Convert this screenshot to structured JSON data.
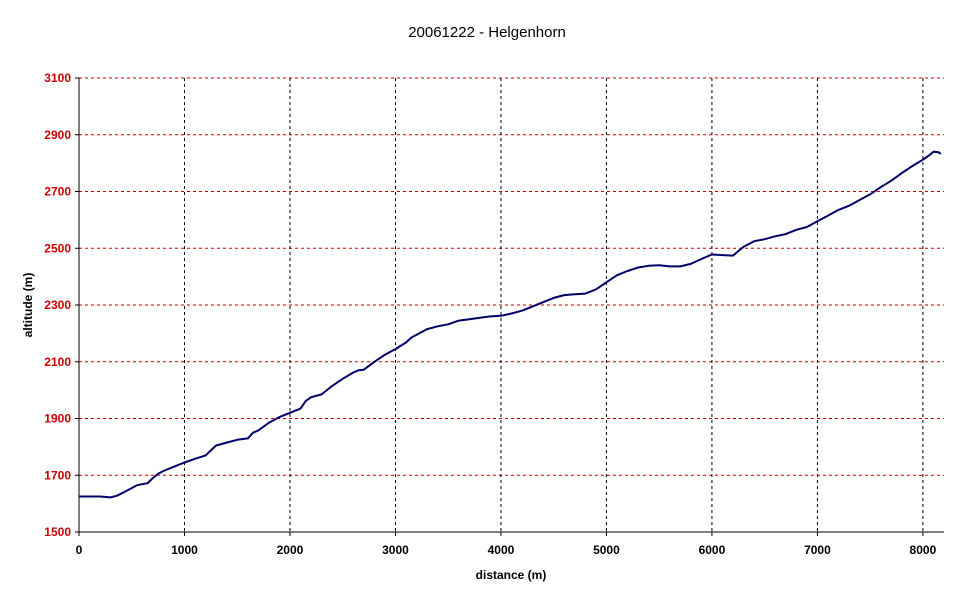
{
  "colors": {
    "line": "#000066",
    "hgrid": "#cc0000",
    "vgrid": "#000000",
    "ytick": "#cc0000",
    "background": "#ffffff"
  },
  "chart_data": {
    "type": "line",
    "title": "20061222 - Helgenhorn",
    "xlabel": "distance (m)",
    "ylabel": "altitude (m)",
    "xlim": [
      0,
      8200
    ],
    "ylim": [
      1500,
      3100
    ],
    "xticks": [
      "0",
      "1000",
      "2000",
      "3000",
      "4000",
      "5000",
      "6000",
      "7000",
      "8000"
    ],
    "yticks": [
      "1500",
      "1700",
      "1900",
      "2100",
      "2300",
      "2500",
      "2700",
      "2900",
      "3100"
    ],
    "grid": true,
    "legend": "none",
    "series": [
      {
        "x": [
          0,
          100,
          200,
          300,
          360,
          450,
          550,
          650,
          700,
          750,
          800,
          900,
          1000,
          1100,
          1200,
          1300,
          1400,
          1500,
          1600,
          1650,
          1700,
          1800,
          1900,
          2000,
          2100,
          2150,
          2200,
          2300,
          2400,
          2500,
          2600,
          2650,
          2700,
          2800,
          2900,
          3000,
          3100,
          3150,
          3200,
          3300,
          3400,
          3500,
          3600,
          3700,
          3800,
          3900,
          4000,
          4100,
          4200,
          4300,
          4400,
          4500,
          4600,
          4700,
          4800,
          4900,
          5000,
          5100,
          5200,
          5300,
          5400,
          5500,
          5600,
          5700,
          5800,
          5900,
          6000,
          6100,
          6200,
          6250,
          6300,
          6400,
          6500,
          6600,
          6700,
          6800,
          6900,
          7000,
          7100,
          7200,
          7300,
          7400,
          7500,
          7600,
          7700,
          7800,
          7900,
          8000,
          8050,
          8100,
          8150,
          8170
        ],
        "y": [
          1625,
          1625,
          1625,
          1622,
          1628,
          1645,
          1665,
          1672,
          1690,
          1705,
          1715,
          1730,
          1745,
          1758,
          1770,
          1805,
          1815,
          1825,
          1830,
          1850,
          1858,
          1885,
          1905,
          1920,
          1935,
          1962,
          1975,
          1985,
          2015,
          2040,
          2062,
          2070,
          2072,
          2100,
          2125,
          2145,
          2168,
          2185,
          2195,
          2215,
          2225,
          2232,
          2245,
          2250,
          2255,
          2260,
          2262,
          2270,
          2280,
          2295,
          2310,
          2325,
          2335,
          2338,
          2340,
          2355,
          2380,
          2405,
          2420,
          2432,
          2438,
          2440,
          2436,
          2436,
          2445,
          2462,
          2478,
          2476,
          2474,
          2490,
          2505,
          2525,
          2532,
          2542,
          2550,
          2565,
          2575,
          2595,
          2615,
          2635,
          2650,
          2670,
          2690,
          2715,
          2738,
          2765,
          2790,
          2812,
          2825,
          2840,
          2838,
          2832
        ]
      }
    ]
  }
}
